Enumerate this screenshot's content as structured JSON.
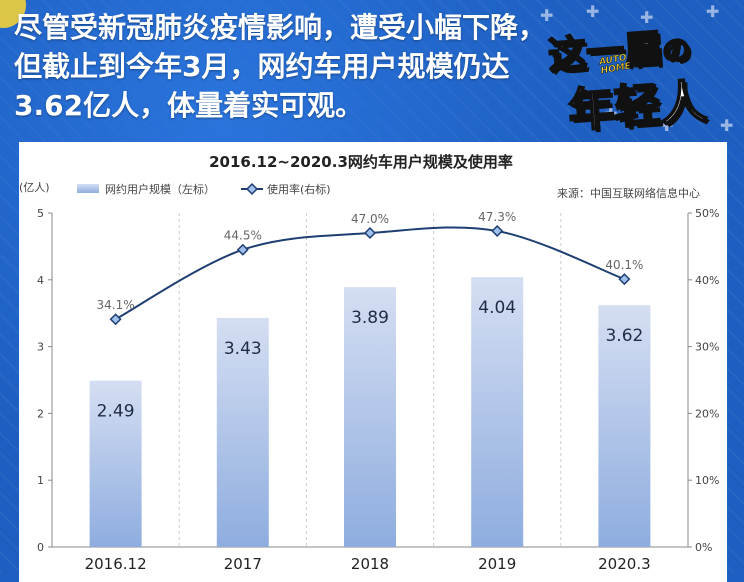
{
  "headline": {
    "line1": "尽管受新冠肺炎疫情影响，遭受小幅下降，",
    "line2": "但截止到今年3月，网约车用户规模仍达",
    "line3": "3.62亿人，体量着实可观。"
  },
  "logo": {
    "line1": "这一届",
    "line2": "年轻人",
    "mark_top": "AUTO",
    "mark_bottom": "HOME",
    "particle": "の"
  },
  "chart_data": {
    "type": "bar",
    "title": "2016.12~2020.3网约车用户规模及使用率",
    "source": "来源：中国互联网络信息中心",
    "categories": [
      "2016.12",
      "2017",
      "2018",
      "2019",
      "2020.3"
    ],
    "y_left_unit": "(亿人)",
    "y_left_ticks": [
      "0",
      "1",
      "2",
      "3",
      "4",
      "5"
    ],
    "y_left_range": [
      0,
      5
    ],
    "y_right_ticks": [
      "0%",
      "10%",
      "20%",
      "30%",
      "40%",
      "50%"
    ],
    "y_right_range": [
      0,
      50
    ],
    "series": [
      {
        "name": "网约用户规模（左标）",
        "type": "bar",
        "axis": "left",
        "values": [
          2.49,
          3.43,
          3.89,
          4.04,
          3.62
        ],
        "labels": [
          "2.49",
          "3.43",
          "3.89",
          "4.04",
          "3.62"
        ]
      },
      {
        "name": "使用率(右标)",
        "type": "line",
        "axis": "right",
        "values": [
          34.1,
          44.5,
          47.0,
          47.3,
          40.1
        ],
        "labels": [
          "34.1%",
          "44.5%",
          "47.0%",
          "47.3%",
          "40.1%"
        ]
      }
    ],
    "grid": "vertical-dashed",
    "legend": "top-left",
    "colors": {
      "bar_top": "#cfdaf0",
      "bar_bottom": "#8faee0",
      "line": "#1f3f73",
      "marker_fill": "#9fc0ea"
    }
  },
  "colors": {
    "background": "#1d5ec0",
    "headline": "#ffffff",
    "logo_accent": "#f5d33a"
  }
}
